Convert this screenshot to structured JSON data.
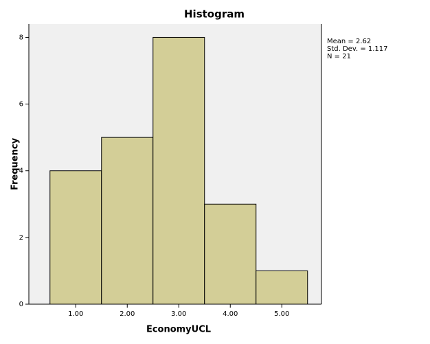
{
  "chart_data": {
    "type": "histogram",
    "title": "Histogram",
    "x_label": "EconomyUCL",
    "y_label": "Frequency",
    "bins": [
      0.5,
      1.5,
      2.5,
      3.5,
      4.5,
      5.5
    ],
    "values": [
      4,
      5,
      8,
      3,
      1
    ],
    "color": "#d3ce97",
    "xlim": [
      0.09,
      5.77
    ],
    "xticks": [
      {
        "value": 1,
        "label": "1.00"
      },
      {
        "value": 2,
        "label": "2.00"
      },
      {
        "value": 3,
        "label": "3.00"
      },
      {
        "value": 4,
        "label": "4.00"
      },
      {
        "value": 5,
        "label": "5.00"
      }
    ],
    "ylim": [
      0,
      8.4
    ],
    "yticks": [
      0,
      2,
      4,
      6,
      8
    ],
    "grid": false,
    "annotations": [
      "Mean = 2.62",
      "Std. Dev. = 1.117",
      "N = 21"
    ]
  }
}
